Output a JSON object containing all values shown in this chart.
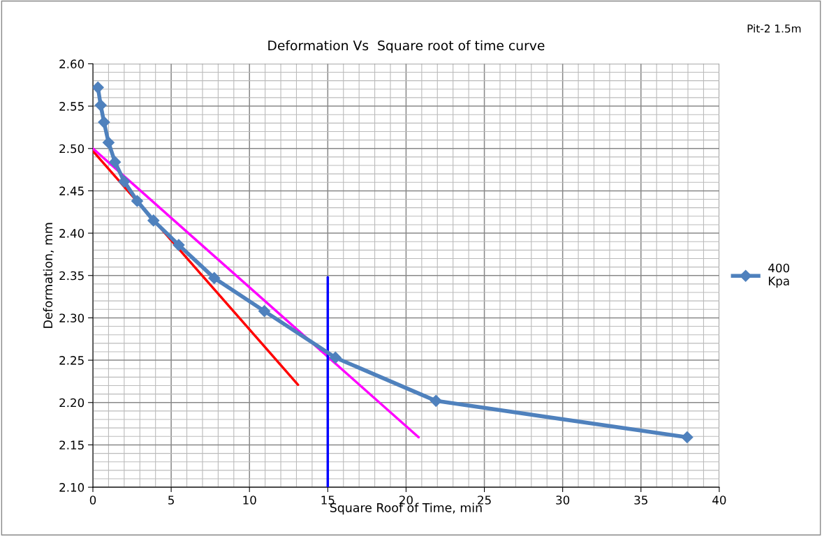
{
  "chart_data": {
    "type": "line",
    "title": "Deformation Vs  Square root of time curve",
    "xlabel": "Square Roof of Time, min",
    "ylabel": "Deformation, mm",
    "annotations": [
      "Pit-2 1.5m"
    ],
    "xlim": [
      0,
      40
    ],
    "xticks": [
      0,
      5,
      10,
      15,
      20,
      25,
      30,
      35,
      40
    ],
    "ylim": [
      2.1,
      2.6
    ],
    "yticks": [
      {
        "value": 2.1,
        "label": "2.10"
      },
      {
        "value": 2.15,
        "label": "2.15"
      },
      {
        "value": 2.2,
        "label": "2.20"
      },
      {
        "value": 2.25,
        "label": "2.25"
      },
      {
        "value": 2.3,
        "label": "2.30"
      },
      {
        "value": 2.35,
        "label": "2.35"
      },
      {
        "value": 2.4,
        "label": "2.40"
      },
      {
        "value": 2.45,
        "label": "2.45"
      },
      {
        "value": 2.5,
        "label": "2.50"
      },
      {
        "value": 2.55,
        "label": "2.55"
      },
      {
        "value": 2.6,
        "label": "2.60"
      }
    ],
    "grid": true,
    "legend": "right",
    "series": [
      {
        "name": "400\nKpa",
        "color": "#4f81bd",
        "marker": "diamond",
        "x": [
          0.32,
          0.5,
          0.71,
          1,
          1.41,
          2,
          2.83,
          3.87,
          5.48,
          7.75,
          10.95,
          15.49,
          21.91,
          37.95
        ],
        "values": [
          2.572,
          2.551,
          2.531,
          2.507,
          2.484,
          2.461,
          2.438,
          2.415,
          2.386,
          2.347,
          2.308,
          2.253,
          2.202,
          2.159
        ]
      },
      {
        "color": "#ff0000",
        "marker": "none",
        "x": [
          0,
          13.1
        ],
        "values": [
          2.497,
          2.221
        ]
      },
      {
        "color": "#ff00ff",
        "marker": "none",
        "x": [
          0,
          20.8
        ],
        "values": [
          2.5,
          2.159
        ]
      },
      {
        "color": "#0000ff",
        "marker": "none",
        "x": [
          15,
          15
        ],
        "values": [
          2.1,
          2.348
        ]
      }
    ]
  }
}
